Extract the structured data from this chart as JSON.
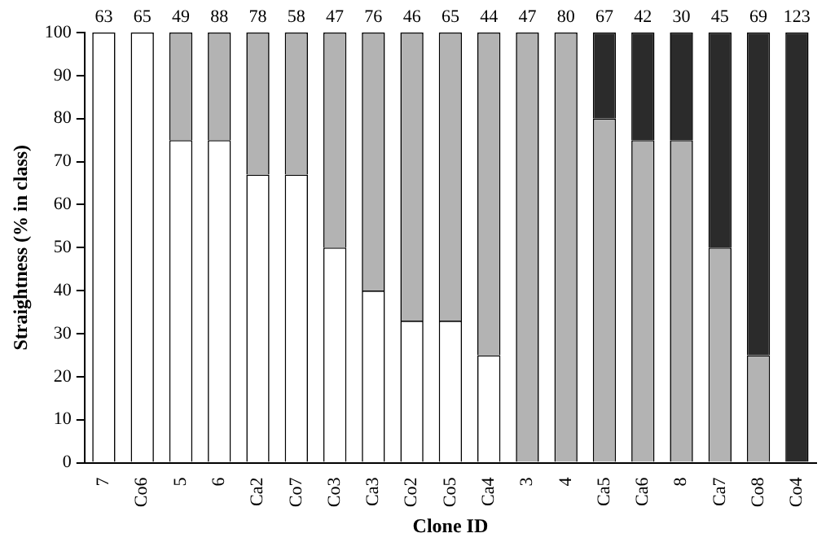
{
  "chart_data": {
    "type": "bar",
    "stacked": true,
    "xlabel": "Clone ID",
    "ylabel": "Straightness (% in class)",
    "categories": [
      "7",
      "Co6",
      "5",
      "6",
      "Ca2",
      "Co7",
      "Co3",
      "Ca3",
      "Co2",
      "Co5",
      "Ca4",
      "3",
      "4",
      "Ca5",
      "Ca6",
      "8",
      "Ca7",
      "Co8",
      "Co4"
    ],
    "series": [
      {
        "color": "#ffffff",
        "values": [
          100,
          100,
          75,
          75,
          67,
          67,
          50,
          40,
          33,
          33,
          25,
          0,
          0,
          0,
          0,
          0,
          0,
          0,
          0
        ]
      },
      {
        "color": "#b3b3b3",
        "values": [
          0,
          0,
          25,
          25,
          33,
          33,
          50,
          60,
          67,
          67,
          75,
          100,
          100,
          80,
          75,
          75,
          50,
          25,
          0
        ]
      },
      {
        "color": "#2b2b2b",
        "values": [
          0,
          0,
          0,
          0,
          0,
          0,
          0,
          0,
          0,
          0,
          0,
          0,
          0,
          20,
          25,
          25,
          50,
          75,
          100
        ]
      }
    ],
    "ylim": [
      0,
      100
    ],
    "yticks": [
      0,
      10,
      20,
      30,
      40,
      50,
      60,
      70,
      80,
      90,
      100
    ],
    "grid": false,
    "legend": false,
    "annotations": [
      "63",
      "65",
      "49",
      "88",
      "78",
      "58",
      "47",
      "76",
      "46",
      "65",
      "44",
      "47",
      "80",
      "67",
      "42",
      "30",
      "45",
      "69",
      "123"
    ]
  }
}
